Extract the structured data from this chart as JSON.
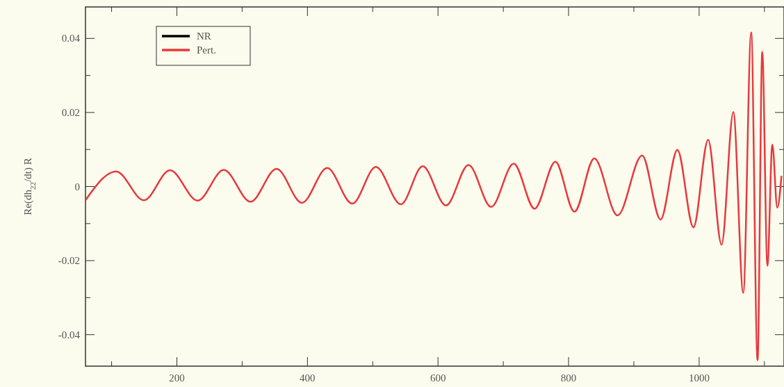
{
  "chart_data": {
    "type": "line",
    "ylabel": "Re(dh$_{22}$/dt) R",
    "xlim": [
      60,
      1130
    ],
    "ylim": [
      -0.0485,
      0.0485
    ],
    "xticks": [
      {
        "value": 100,
        "label": null
      },
      200,
      {
        "value": 300,
        "label": null
      },
      400,
      {
        "value": 500,
        "label": null
      },
      600,
      {
        "value": 700,
        "label": null
      },
      800,
      {
        "value": 900,
        "label": null
      },
      1000,
      {
        "value": 1100,
        "label": null
      }
    ],
    "yticks": [
      -0.04,
      {
        "value": -0.03,
        "label": null
      },
      -0.02,
      {
        "value": -0.01,
        "label": null
      },
      0,
      {
        "value": 0.01,
        "label": null
      },
      0.02,
      {
        "value": 0.03,
        "label": null
      },
      0.04
    ],
    "legend": "top left",
    "marker": "none",
    "line_style": "solid",
    "x": [
      60,
      106.9,
      149.5,
      189.4,
      231.9,
      271.8,
      312.8,
      352.7,
      391.5,
      430.3,
      468.6,
      504.8,
      543.1,
      576.6,
      612.2,
      646.8,
      681.4,
      716,
      747.9,
      779.8,
      809,
      839.4,
      875,
      912.7,
      940.9,
      966.7,
      991.3,
      1013.8,
      1034.4,
      1052.4,
      1067.6,
      1079.7,
      1089.5,
      1096.7,
      1104.6,
      1112.1,
      1119.7,
      1126.2
    ],
    "series": [
      {
        "name": "NR",
        "color": "#000000",
        "values": [
          null,
          null,
          null,
          null,
          null,
          null,
          null,
          null,
          null,
          null,
          null,
          null,
          null,
          null,
          null,
          null,
          null,
          null,
          null,
          null,
          null,
          null,
          null,
          null,
          null,
          null,
          null,
          null,
          null,
          null,
          null,
          null,
          null,
          null,
          null,
          null,
          null,
          null
        ]
      },
      {
        "name": "Pert.",
        "color": "#e8383c",
        "values": [
          -0.0037,
          0.0041,
          -0.0037,
          0.0044,
          -0.0038,
          0.0045,
          -0.0041,
          0.0048,
          -0.0044,
          0.005,
          -0.0046,
          0.0053,
          -0.0048,
          0.0055,
          -0.0051,
          0.0058,
          -0.0055,
          0.0062,
          -0.006,
          0.0067,
          -0.0068,
          0.0076,
          -0.0078,
          0.0084,
          -0.0089,
          0.0099,
          -0.011,
          0.0126,
          -0.0157,
          0.0201,
          -0.0287,
          0.0416,
          -0.0469,
          0.0364,
          -0.0214,
          0.0113,
          -0.0057,
          0.0029
        ]
      }
    ]
  }
}
